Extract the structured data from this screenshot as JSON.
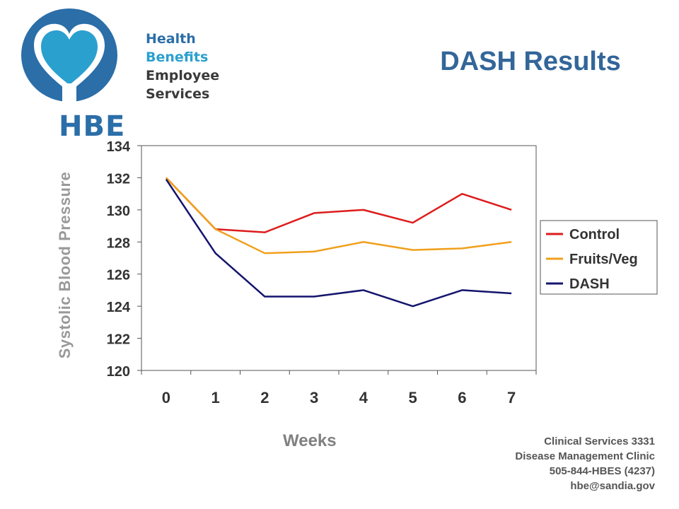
{
  "logo": {
    "line1": "Health",
    "line2": "Benefits",
    "line3": "Employee Services",
    "abbr": "HBE"
  },
  "title": "DASH Results",
  "footer": {
    "line1": "Clinical Services 3331",
    "line2": "Disease Management Clinic",
    "line3": "505-844-HBES (4237)",
    "line4": "hbe@sandia.gov"
  },
  "chart_data": {
    "type": "line",
    "xlabel": "Weeks",
    "ylabel": "Systolic Blood Pressure",
    "x": [
      0,
      1,
      2,
      3,
      4,
      5,
      6,
      7
    ],
    "ylim": [
      120,
      134
    ],
    "yticks": [
      120,
      122,
      124,
      126,
      128,
      130,
      132,
      134
    ],
    "grid": false,
    "legend_position": "right",
    "series": [
      {
        "name": "Control",
        "color": "#dd1c1c",
        "values": [
          132.0,
          128.8,
          128.6,
          129.8,
          130.0,
          129.2,
          131.0,
          130.0
        ]
      },
      {
        "name": "Fruits/Veg",
        "color": "#f0a01c",
        "values": [
          132.0,
          128.8,
          127.3,
          127.4,
          128.0,
          127.5,
          127.6,
          128.0
        ]
      },
      {
        "name": "DASH",
        "color": "#14146e",
        "values": [
          131.9,
          127.3,
          124.6,
          124.6,
          125.0,
          124.0,
          125.0,
          124.8
        ]
      }
    ]
  }
}
